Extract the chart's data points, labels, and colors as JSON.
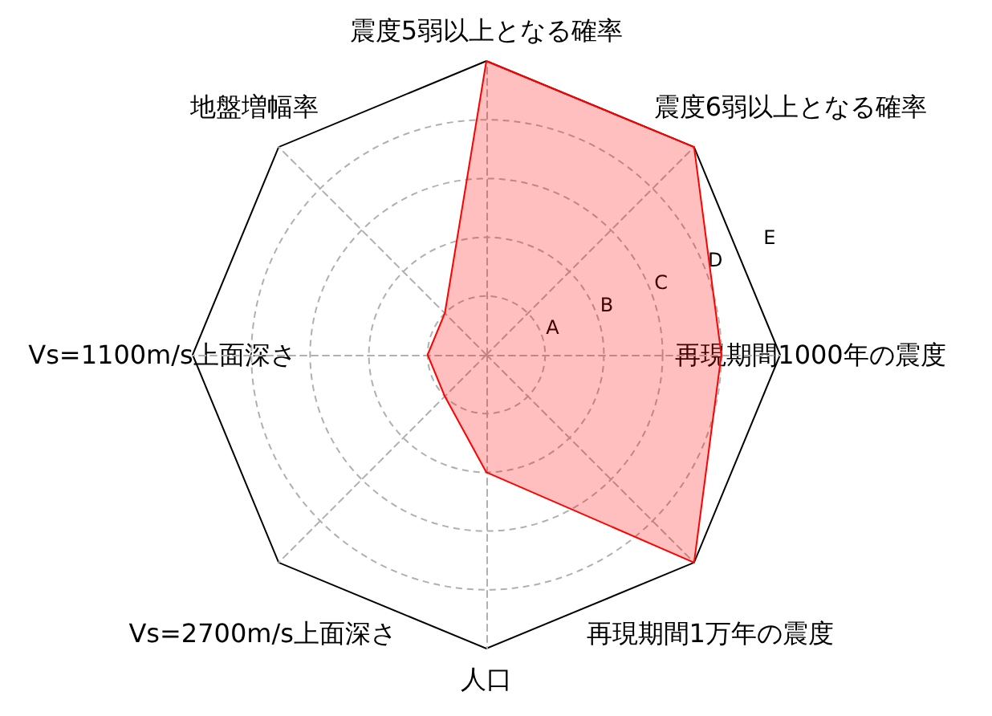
{
  "chart_data": {
    "type": "radar",
    "categories": [
      "震度5弱以上となる確率",
      "震度6弱以上となる確率",
      "再現期間1000年の震度",
      "再現期間1万年の震度",
      "人口",
      "Vs=2700m/s上面深さ",
      "Vs=1100m/s上面深さ",
      "地盤増幅率"
    ],
    "series": [
      {
        "color": "#ff0000",
        "values": [
          5,
          5,
          4,
          5,
          2,
          1,
          1,
          1
        ]
      }
    ],
    "ylim": [
      0,
      5
    ],
    "yticks": [
      {
        "value": 1,
        "label": "A"
      },
      {
        "value": 2,
        "label": "B"
      },
      {
        "value": 3,
        "label": "C"
      },
      {
        "value": 4,
        "label": "D"
      },
      {
        "value": 5,
        "label": "E"
      }
    ],
    "grid": true
  }
}
